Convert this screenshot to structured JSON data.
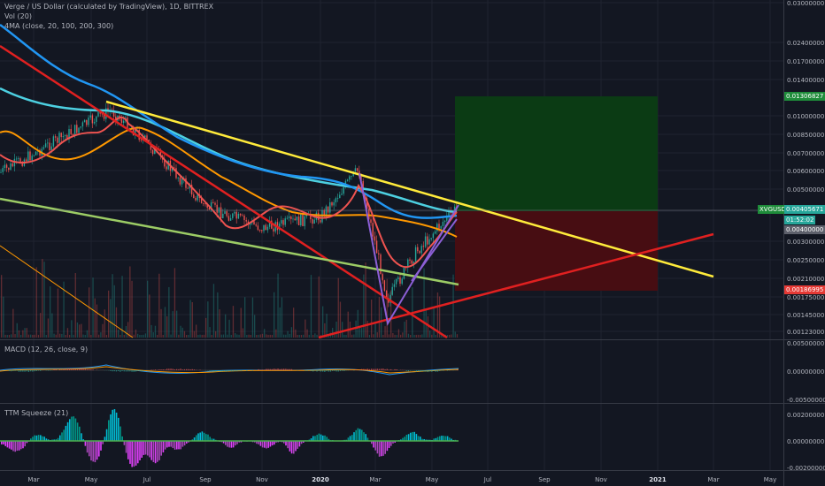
{
  "header": {
    "title": "Verge / US Dollar (calculated by TradingView), 1D, BITTREX",
    "vol": "Vol (20)",
    "ma": "4MA (close, 20, 100, 200, 300)"
  },
  "panes": {
    "macd_label": "MACD (12, 26, close, 9)",
    "ttm_label": "TTM Squeeze (21)"
  },
  "price_axis": {
    "ticks": [
      "0.03000000",
      "0.02400000",
      "0.01700000",
      "0.01400000",
      "0.01000000",
      "0.00850000",
      "0.00700000",
      "0.00600000",
      "0.00500000",
      "0.00400000",
      "0.00300000",
      "0.00250000",
      "0.00210000",
      "0.00175000",
      "0.00145000",
      "0.00123000"
    ],
    "tag_target": "0.01306827",
    "tag_symbol": "XVGUSD",
    "tag_price": "0.00405671",
    "tag_countdown": "01:52:02",
    "tag_entry": "0.00400000",
    "tag_stop": "0.00186995"
  },
  "macd_axis": {
    "ticks": [
      "0.00500000",
      "0.00000000",
      "-0.00500000"
    ]
  },
  "ttm_axis": {
    "ticks": [
      "0.00200000",
      "0.00000000",
      "-0.00200000"
    ]
  },
  "time_axis": {
    "labels": [
      "Mar",
      "May",
      "Jul",
      "Sep",
      "Nov",
      "2020",
      "Mar",
      "May",
      "Jul",
      "Sep",
      "Nov",
      "2021",
      "Mar",
      "May"
    ]
  },
  "colors": {
    "bg": "#131722",
    "grid": "#1f2330",
    "up": "#26a69a",
    "down": "#ef5350",
    "ma20": "#ef5350",
    "ma100": "#ff9800",
    "ma200": "#2196f3",
    "ma300": "#4dd0e1",
    "trend_yellow": "#ffeb3b",
    "trend_red": "#e02020",
    "trend_green": "#9ccc65",
    "trend_purple": "#8c5fd6",
    "target": "#0b3d14",
    "stop": "#4a0d12",
    "price_tag": "#1e8c3a",
    "stop_tag": "#e53935"
  },
  "chart_data": {
    "type": "line",
    "title": "Verge / US Dollar (calculated by TradingView), 1D, BITTREX",
    "x_range": [
      "2019-03",
      "2021-05"
    ],
    "y_scale": "log",
    "last_close": 0.00405671,
    "series": [
      {
        "name": "close",
        "x": [
          "2019-03",
          "2019-05",
          "2019-06",
          "2019-07",
          "2019-09",
          "2019-11",
          "2020-01",
          "2020-02",
          "2020-03",
          "2020-04",
          "2020-05",
          "2020-06"
        ],
        "values": [
          0.0058,
          0.009,
          0.0106,
          0.0082,
          0.0042,
          0.0034,
          0.0038,
          0.006,
          0.0017,
          0.0027,
          0.0036,
          0.0041
        ]
      }
    ],
    "position": {
      "entry": 0.004,
      "target": 0.01306827,
      "stop": 0.00186995
    }
  }
}
